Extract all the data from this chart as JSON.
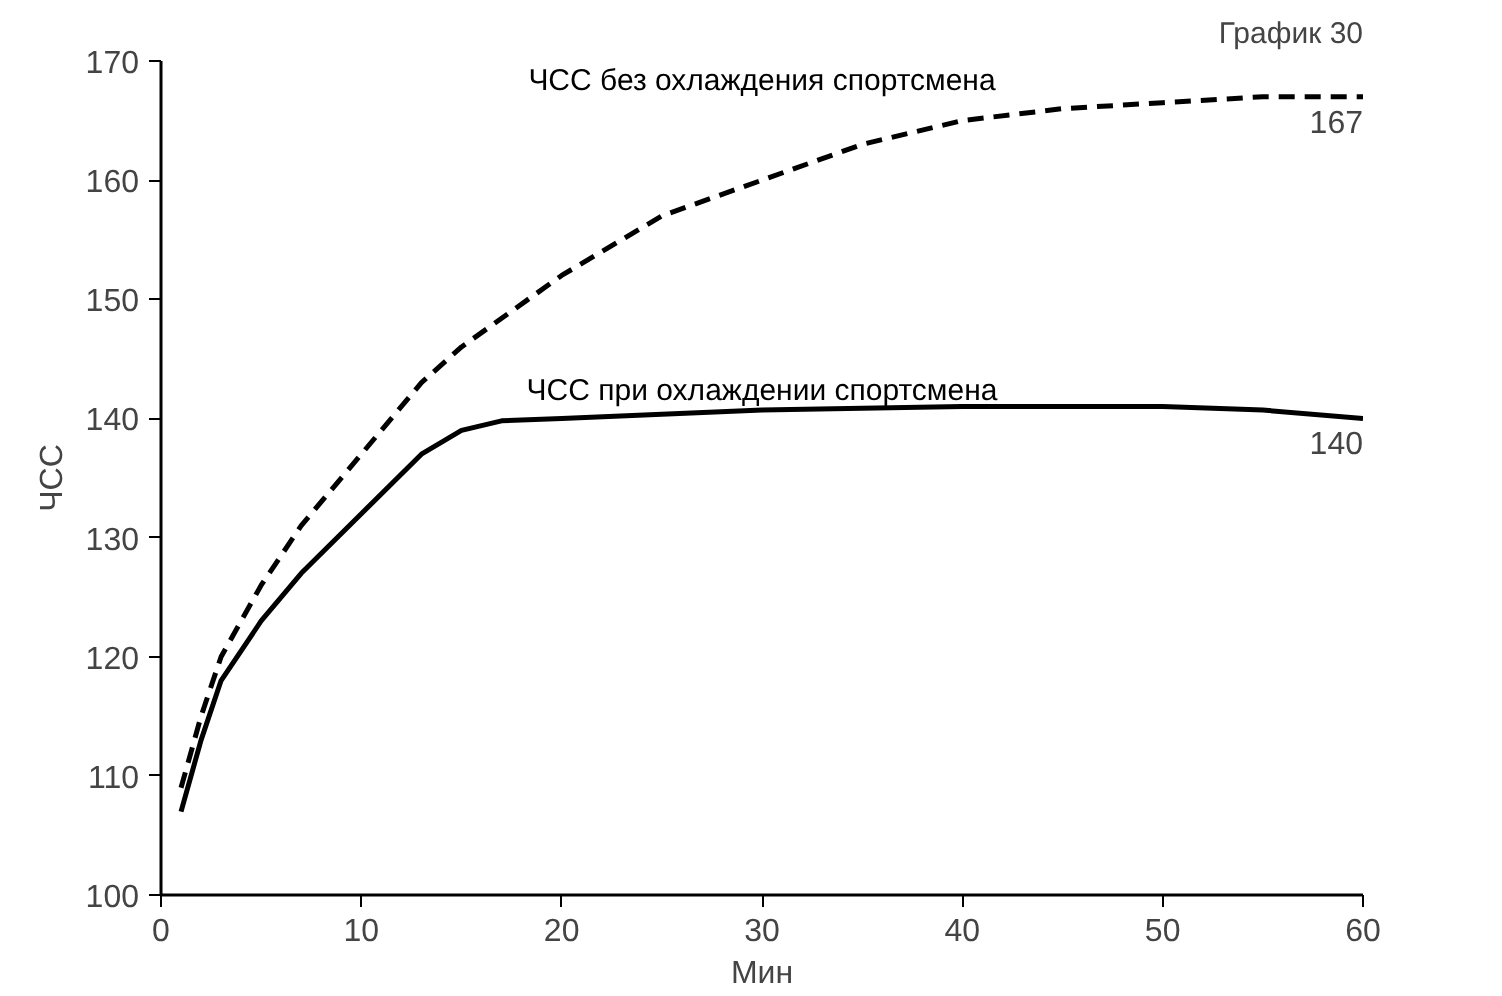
{
  "chart_data": {
    "type": "line",
    "title": "График 30",
    "xlabel": "Мин",
    "ylabel": "ЧСС",
    "xlim": [
      0,
      60
    ],
    "ylim": [
      100,
      170
    ],
    "xticks": [
      0,
      10,
      20,
      30,
      40,
      50,
      60
    ],
    "yticks": [
      100,
      110,
      120,
      130,
      140,
      150,
      160,
      170
    ],
    "grid": false,
    "legend": false,
    "series": [
      {
        "name": "ЧСС без охлаждения спортсмена",
        "value_labels": [
          null,
          null,
          null,
          null,
          null,
          null,
          null,
          null,
          null,
          null,
          null,
          null,
          null,
          null,
          null,
          null,
          "167"
        ],
        "color": "#000000",
        "line_style": "dashed",
        "x": [
          1,
          2,
          3,
          5,
          7,
          10,
          13,
          15,
          20,
          25,
          30,
          35,
          40,
          45,
          50,
          55,
          60
        ],
        "values": [
          109,
          115,
          120,
          126,
          131,
          137,
          143,
          146,
          152,
          157,
          160,
          163,
          165,
          166,
          166.5,
          167,
          167
        ]
      },
      {
        "name": "ЧСС при охлаждении спортсмена",
        "value_labels": [
          null,
          null,
          null,
          null,
          null,
          null,
          null,
          null,
          null,
          null,
          null,
          null,
          null,
          null,
          "140"
        ],
        "color": "#000000",
        "line_style": "solid",
        "x": [
          1,
          2,
          3,
          5,
          7,
          10,
          13,
          15,
          17,
          20,
          30,
          40,
          50,
          55,
          60
        ],
        "values": [
          107,
          113,
          118,
          123,
          127,
          132,
          137,
          139,
          139.8,
          140,
          140.7,
          141,
          141,
          140.7,
          140
        ]
      }
    ]
  }
}
